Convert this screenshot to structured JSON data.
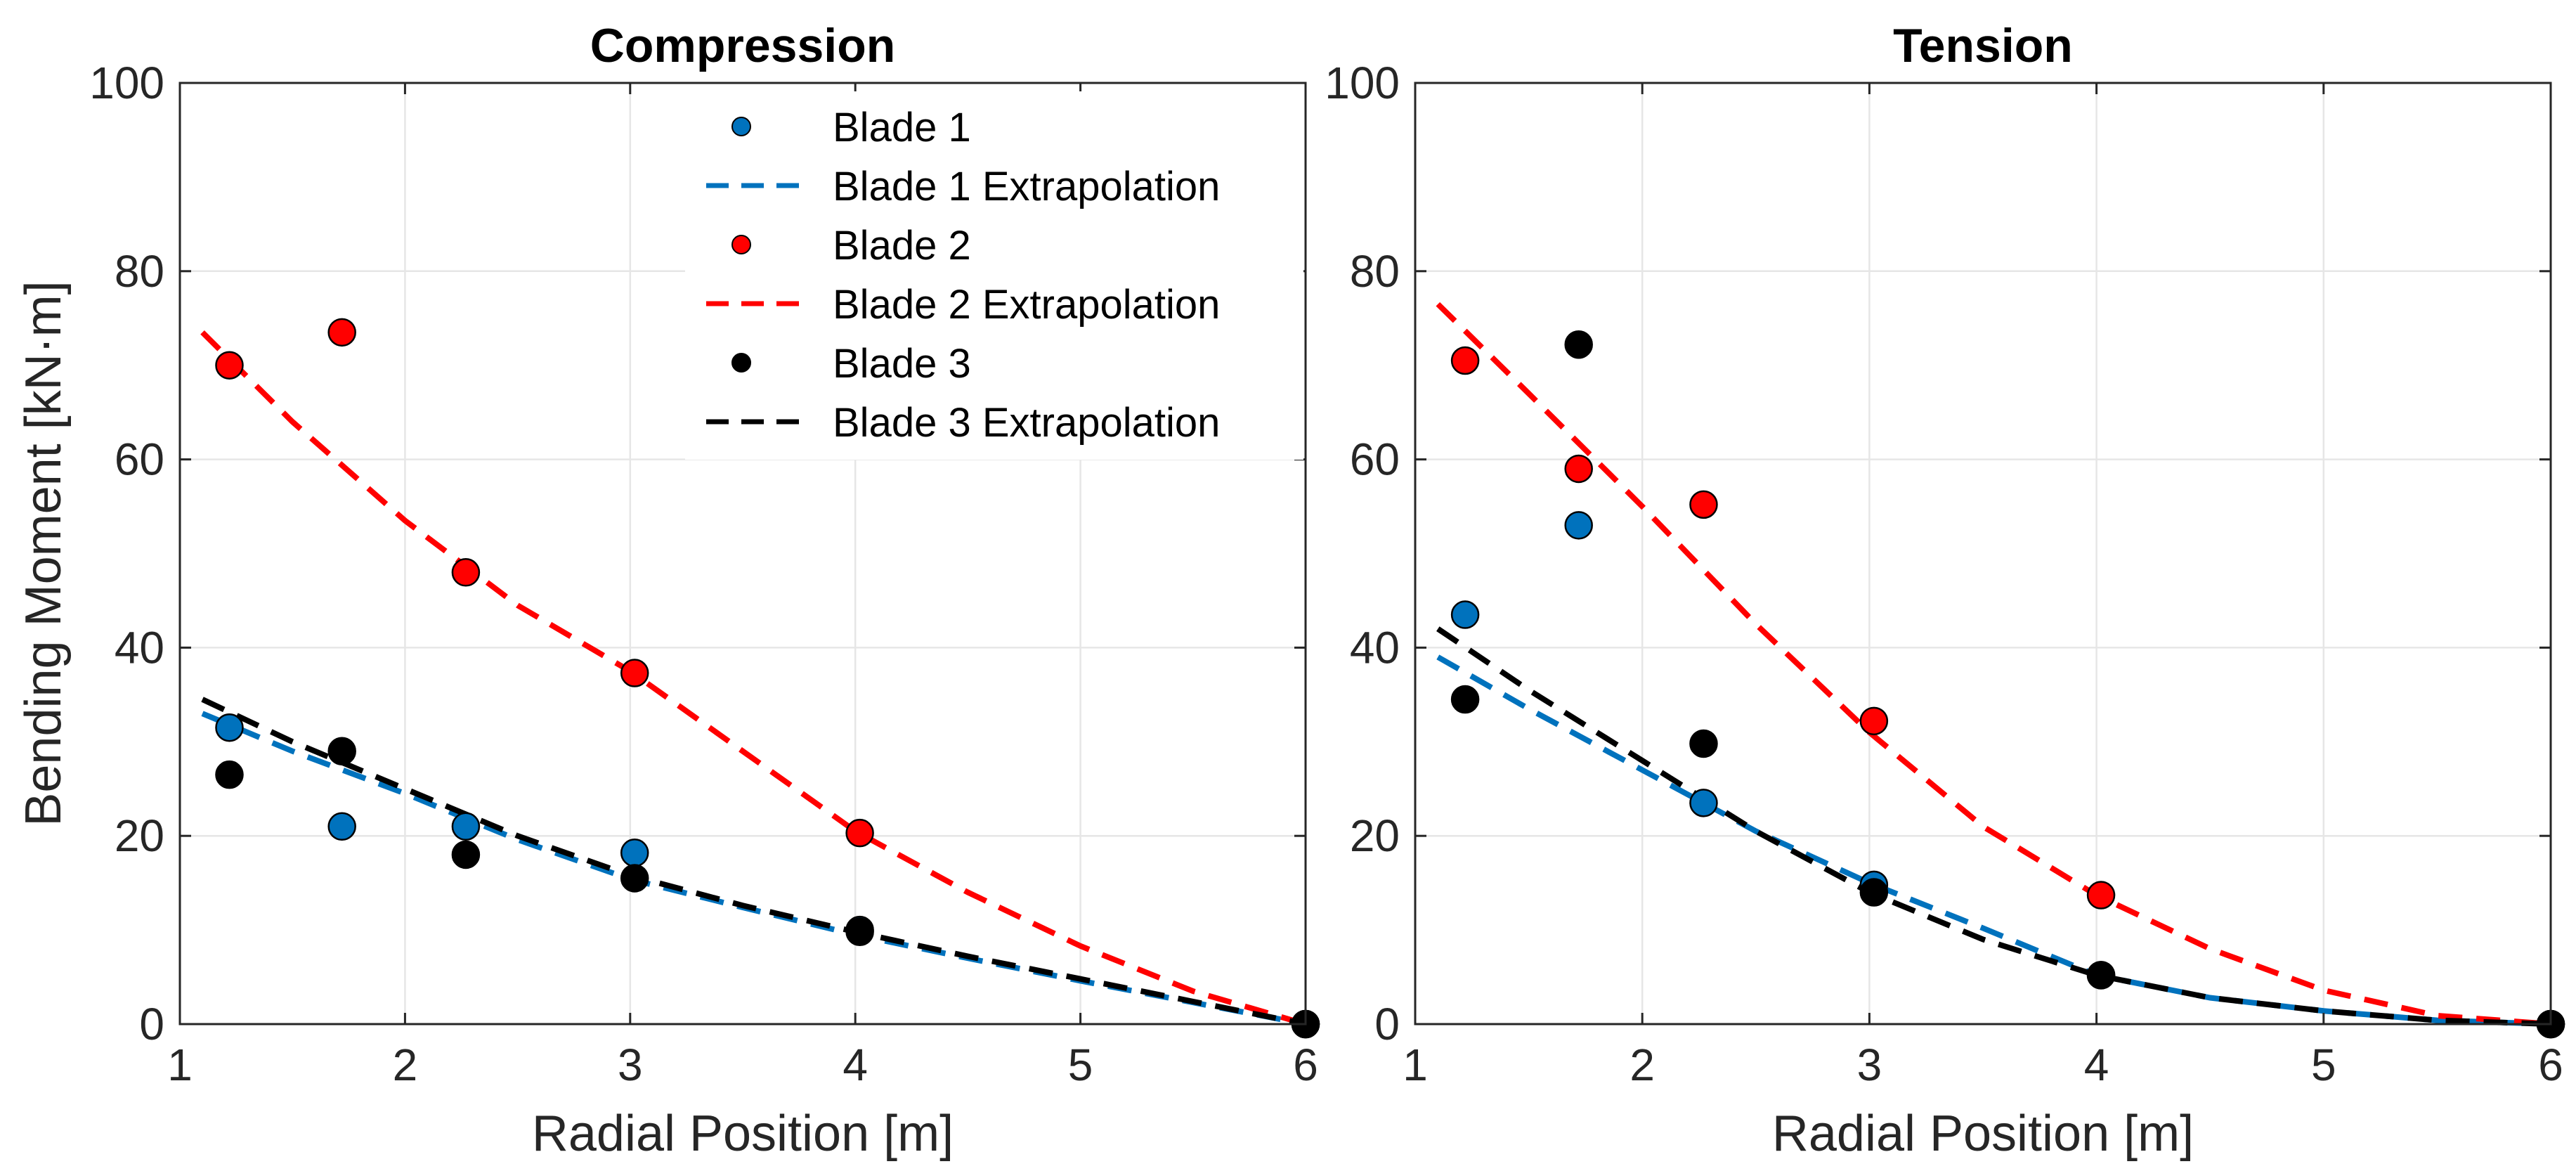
{
  "chart_data": [
    {
      "type": "scatter",
      "title": "Compression",
      "xlabel": "Radial Position [m]",
      "ylabel": "Bending Moment [kN·m]",
      "xlim": [
        1,
        6
      ],
      "ylim": [
        0,
        100
      ],
      "xticks": [
        "1",
        "2",
        "3",
        "4",
        "5",
        "6"
      ],
      "yticks": [
        "0",
        "20",
        "40",
        "60",
        "80",
        "100"
      ],
      "grid": true,
      "legend": "top-right",
      "series": [
        {
          "name": "Blade 1",
          "kind": "markers",
          "color": "#0072BD",
          "x": [
            1.22,
            1.72,
            2.27,
            3.02,
            4.02,
            6.0
          ],
          "y": [
            31.5,
            21.0,
            21.0,
            18.2,
            10.0,
            0.0
          ]
        },
        {
          "name": "Blade 1 Extrapolation",
          "kind": "dashed-line",
          "color": "#0072BD",
          "x": [
            1.1,
            1.5,
            2.0,
            2.5,
            3.0,
            3.5,
            4.0,
            4.5,
            5.0,
            5.5,
            6.0
          ],
          "y": [
            33.0,
            29.0,
            24.5,
            19.6,
            15.4,
            12.4,
            9.5,
            7.0,
            4.6,
            2.3,
            0.0
          ]
        },
        {
          "name": "Blade 2",
          "kind": "markers",
          "color": "#FF0000",
          "x": [
            1.22,
            1.72,
            2.27,
            3.02,
            4.02,
            6.0
          ],
          "y": [
            70.0,
            73.5,
            48.0,
            37.3,
            20.3,
            0.0
          ]
        },
        {
          "name": "Blade 2 Extrapolation",
          "kind": "dashed-line",
          "color": "#FF0000",
          "x": [
            1.1,
            1.5,
            2.0,
            2.5,
            3.0,
            3.5,
            4.0,
            4.5,
            5.0,
            5.5,
            6.0
          ],
          "y": [
            73.5,
            64.0,
            53.5,
            44.5,
            37.5,
            29.0,
            20.5,
            14.0,
            8.3,
            3.5,
            0.0
          ]
        },
        {
          "name": "Blade 3",
          "kind": "markers",
          "color": "#000000",
          "x": [
            1.22,
            1.72,
            2.27,
            3.02,
            4.02,
            6.0
          ],
          "y": [
            26.5,
            29.0,
            18.0,
            15.5,
            9.8,
            0.0
          ]
        },
        {
          "name": "Blade 3 Extrapolation",
          "kind": "dashed-line",
          "color": "#000000",
          "x": [
            1.1,
            1.5,
            2.0,
            2.5,
            3.0,
            3.5,
            4.0,
            4.5,
            5.0,
            5.5,
            6.0
          ],
          "y": [
            34.5,
            30.0,
            25.0,
            20.0,
            15.8,
            12.6,
            9.8,
            7.2,
            4.8,
            2.4,
            0.0
          ]
        }
      ]
    },
    {
      "type": "scatter",
      "title": "Tension",
      "xlabel": "Radial Position [m]",
      "ylabel": "",
      "xlim": [
        1,
        6
      ],
      "ylim": [
        0,
        100
      ],
      "xticks": [
        "1",
        "2",
        "3",
        "4",
        "5",
        "6"
      ],
      "yticks": [
        "0",
        "20",
        "40",
        "60",
        "80",
        "100"
      ],
      "grid": true,
      "legend": "",
      "series": [
        {
          "name": "Blade 1",
          "kind": "markers",
          "color": "#0072BD",
          "x": [
            1.22,
            1.72,
            2.27,
            3.02,
            4.02,
            6.0
          ],
          "y": [
            43.5,
            53.0,
            23.5,
            14.8,
            5.2,
            0.0
          ]
        },
        {
          "name": "Blade 1 Extrapolation",
          "kind": "dashed-line",
          "color": "#0072BD",
          "x": [
            1.1,
            1.5,
            2.0,
            2.5,
            3.0,
            3.5,
            4.0,
            4.5,
            5.0,
            5.5,
            6.0
          ],
          "y": [
            39.0,
            33.5,
            27.0,
            20.5,
            15.0,
            10.2,
            5.2,
            2.8,
            1.4,
            0.4,
            0.0
          ]
        },
        {
          "name": "Blade 2",
          "kind": "markers",
          "color": "#FF0000",
          "x": [
            1.22,
            1.72,
            2.27,
            3.02,
            4.02,
            6.0
          ],
          "y": [
            70.5,
            59.0,
            55.2,
            32.2,
            13.7,
            0.0
          ]
        },
        {
          "name": "Blade 2 Extrapolation",
          "kind": "dashed-line",
          "color": "#FF0000",
          "x": [
            1.1,
            1.5,
            2.0,
            2.5,
            3.0,
            3.5,
            4.0,
            4.5,
            5.0,
            5.5,
            6.0
          ],
          "y": [
            76.5,
            67.0,
            55.0,
            42.5,
            31.0,
            21.0,
            13.7,
            8.0,
            3.6,
            0.9,
            0.0
          ]
        },
        {
          "name": "Blade 3",
          "kind": "markers",
          "color": "#000000",
          "x": [
            1.22,
            1.72,
            2.27,
            3.02,
            4.02,
            6.0
          ],
          "y": [
            34.5,
            72.2,
            29.8,
            14.0,
            5.2,
            0.0
          ]
        },
        {
          "name": "Blade 3 Extrapolation",
          "kind": "dashed-line",
          "color": "#000000",
          "x": [
            1.1,
            1.5,
            2.0,
            2.5,
            3.0,
            3.5,
            4.0,
            4.5,
            5.0,
            5.5,
            6.0
          ],
          "y": [
            42.0,
            35.5,
            28.0,
            20.5,
            14.0,
            9.0,
            5.2,
            2.8,
            1.4,
            0.4,
            0.0
          ]
        }
      ]
    }
  ]
}
